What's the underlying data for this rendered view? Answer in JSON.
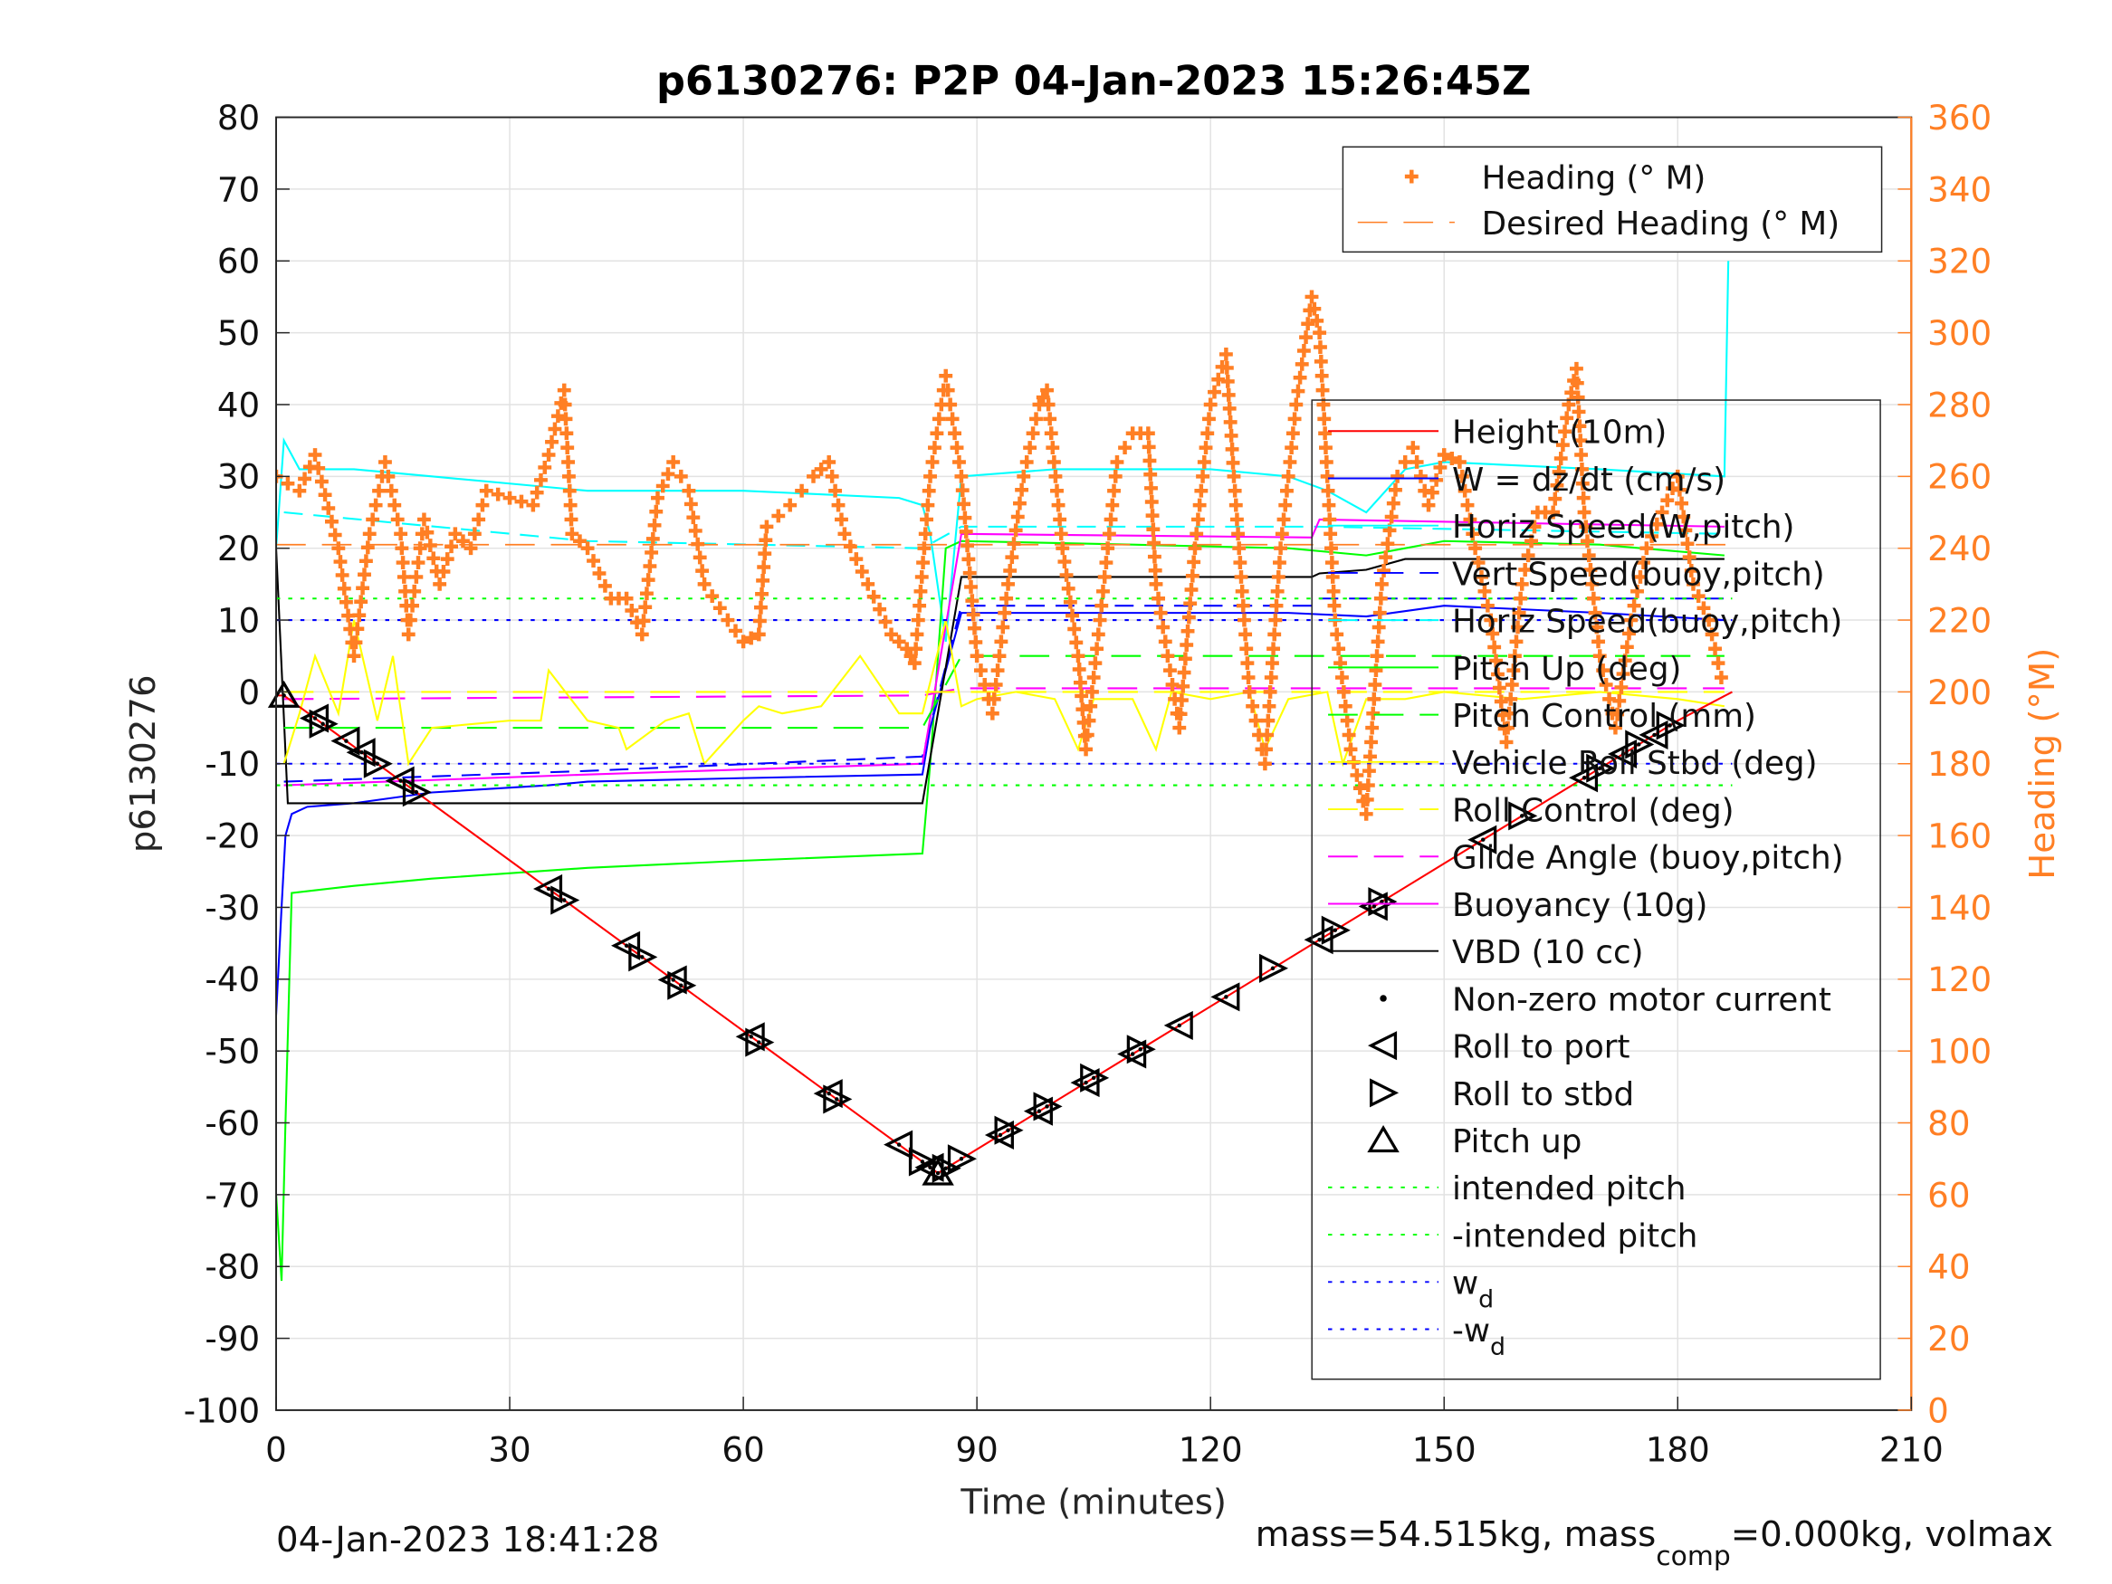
{
  "chart_data": {
    "type": "line",
    "title": "p6130276: P2P 04-Jan-2023 15:26:45Z",
    "xlabel": "Time (minutes)",
    "ylabel": "p6130276",
    "y2label": "Heading (°M)",
    "xlim": [
      0,
      210
    ],
    "ylim": [
      -100,
      80
    ],
    "y2lim": [
      0,
      360
    ],
    "xticks": [
      0,
      30,
      60,
      90,
      120,
      150,
      180,
      210
    ],
    "yticks": [
      80,
      70,
      60,
      50,
      40,
      30,
      20,
      10,
      0,
      -10,
      -20,
      -30,
      -40,
      -50,
      -60,
      -70,
      -80,
      -90,
      -100
    ],
    "y2ticks": [
      360,
      340,
      320,
      300,
      280,
      260,
      240,
      220,
      200,
      180,
      160,
      140,
      120,
      100,
      80,
      60,
      40,
      20,
      0
    ],
    "grid": true,
    "footer_left": "04-Jan-2023 18:41:28",
    "footer_right": {
      "pre": "mass=54.515kg, mass",
      "sub": "comp",
      "post": "=0.000kg, volmax"
    },
    "legend_heading": [
      {
        "label": "Heading (° M)",
        "color": "#ff7f24",
        "style": "plus"
      },
      {
        "label": "Desired Heading (° M)",
        "color": "#ff7f24",
        "style": "dash"
      }
    ],
    "legend": [
      {
        "label": "Height (10m)",
        "color": "#ff0000",
        "style": "solid"
      },
      {
        "label": "W = dz/dt (cm/s)",
        "color": "#0000ff",
        "style": "solid"
      },
      {
        "label": "Horiz Speed(W,pitch)",
        "color": "#00ffff",
        "style": "solid"
      },
      {
        "label": "Vert Speed(buoy,pitch)",
        "color": "#0000ff",
        "style": "dash"
      },
      {
        "label": "Horiz Speed(buoy,pitch)",
        "color": "#00ffff",
        "style": "dash"
      },
      {
        "label": "Pitch Up (deg)",
        "color": "#00ff00",
        "style": "solid"
      },
      {
        "label": "Pitch Control (mm)",
        "color": "#00ff00",
        "style": "dash"
      },
      {
        "label": "Vehicle Roll Stbd (deg)",
        "color": "#ffff00",
        "style": "solid"
      },
      {
        "label": "Roll Control (deg)",
        "color": "#ffff00",
        "style": "dash"
      },
      {
        "label": "Glide Angle (buoy,pitch)",
        "color": "#ff00ff",
        "style": "dash"
      },
      {
        "label": "Buoyancy (10g)",
        "color": "#ff00ff",
        "style": "solid"
      },
      {
        "label": "VBD (10 cc)",
        "color": "#000000",
        "style": "solid"
      },
      {
        "label": "Non-zero motor current",
        "color": "#000000",
        "style": "dot"
      },
      {
        "label": "Roll to port",
        "color": "#000000",
        "style": "port"
      },
      {
        "label": "Roll to stbd",
        "color": "#000000",
        "style": "stbd"
      },
      {
        "label": "Pitch up",
        "color": "#000000",
        "style": "up"
      },
      {
        "label": "intended pitch",
        "color": "#00ff00",
        "style": "dotted"
      },
      {
        "label": "-intended pitch",
        "color": "#00ff00",
        "style": "dotted"
      },
      {
        "label": "w",
        "sub": "d",
        "color": "#0000ff",
        "style": "dotted"
      },
      {
        "label": "-w",
        "sub": "d",
        "color": "#0000ff",
        "style": "dotted"
      }
    ],
    "series": [
      {
        "name": "Horiz Speed(W,pitch)",
        "color": "#00ffff",
        "dash": "",
        "x": [
          0,
          1,
          3,
          10,
          20,
          30,
          40,
          60,
          80,
          83,
          84,
          86,
          88,
          100,
          120,
          130,
          135,
          140,
          145,
          150,
          170,
          186,
          186.5
        ],
        "y": [
          20,
          35,
          31,
          31,
          30,
          29,
          28,
          28,
          27,
          26,
          22,
          7,
          30,
          31,
          31,
          30,
          28,
          25,
          31,
          32,
          31,
          30,
          60
        ]
      },
      {
        "name": "Horiz Speed(buoy,pitch)",
        "color": "#00ffff",
        "dash": "14 8",
        "x": [
          1,
          40,
          83,
          88,
          133,
          134,
          186
        ],
        "y": [
          25,
          21,
          20,
          23,
          23,
          23,
          22
        ]
      },
      {
        "name": "Pitch Up (deg)",
        "color": "#00ff00",
        "dash": "",
        "x": [
          0,
          0.7,
          1.2,
          2,
          10,
          20,
          40,
          60,
          83,
          84,
          85,
          86,
          88,
          110,
          130,
          140,
          145,
          150,
          170,
          186
        ],
        "y": [
          -70,
          -82,
          -60,
          -28,
          -27,
          -26,
          -24.5,
          -23.5,
          -22.5,
          -10,
          5,
          20,
          21,
          20.5,
          20,
          19,
          20,
          21,
          20.5,
          19
        ]
      },
      {
        "name": "W = dz/dt (cm/s)",
        "color": "#0000ff",
        "dash": "",
        "x": [
          0,
          0.7,
          1.2,
          2,
          4,
          10,
          20,
          35,
          40,
          60,
          83,
          84,
          88,
          110,
          130,
          140,
          150,
          170,
          186
        ],
        "y": [
          -45,
          -30,
          -20,
          -17,
          -16,
          -15.5,
          -14,
          -13,
          -12.5,
          -12,
          -11.5,
          -5,
          11,
          11,
          11,
          10.5,
          12,
          11,
          10
        ]
      },
      {
        "name": "Vert Speed(buoy,pitch)",
        "color": "#0000ff",
        "dash": "14 8",
        "x": [
          1,
          40,
          83,
          88,
          133,
          134,
          186
        ],
        "y": [
          -12.5,
          -11,
          -9,
          12,
          12,
          13,
          13
        ]
      },
      {
        "name": "Buoyancy (10g)",
        "color": "#ff00ff",
        "dash": "",
        "x": [
          1,
          40,
          83,
          88,
          133,
          134,
          186
        ],
        "y": [
          -13,
          -11.5,
          -10,
          22,
          21.5,
          24,
          23
        ]
      },
      {
        "name": "Glide Angle (buoy,pitch)",
        "color": "#ff00ff",
        "dash": "22 12",
        "x": [
          1,
          83,
          88,
          186
        ],
        "y": [
          -1,
          -0.5,
          0.5,
          0.5
        ]
      },
      {
        "name": "VBD (10 cc)",
        "color": "#000000",
        "dash": "",
        "x": [
          0,
          1.5,
          83,
          88,
          133,
          134,
          140,
          145,
          186
        ],
        "y": [
          20,
          -15.5,
          -15.5,
          16,
          16,
          16.5,
          17,
          18.5,
          18.5
        ]
      },
      {
        "name": "Pitch Control (mm)",
        "color": "#00ff00",
        "dash": "22 12",
        "x": [
          1,
          83,
          88,
          186
        ],
        "y": [
          -5,
          -5,
          5,
          5
        ]
      },
      {
        "name": "Vehicle Roll Stbd (deg)",
        "color": "#ffff00",
        "dash": "",
        "x": [
          1,
          3,
          5,
          8,
          10,
          13,
          15,
          17,
          20,
          30,
          34,
          35,
          40,
          44,
          45,
          50,
          53,
          55,
          60,
          62,
          65,
          70,
          75,
          80,
          83,
          86,
          88,
          90,
          95,
          100,
          103,
          105,
          110,
          113,
          115,
          120,
          125,
          127,
          130,
          135,
          137,
          140,
          145,
          150,
          160,
          170,
          180,
          186
        ],
        "y": [
          -10,
          -3,
          5,
          -3,
          10,
          -4,
          5,
          -10,
          -5,
          -4,
          -4,
          3,
          -4,
          -5,
          -8,
          -4,
          -3,
          -10,
          -4,
          -2,
          -3,
          -2,
          5,
          -3,
          -3,
          10,
          -2,
          -1,
          0,
          -1,
          -8,
          -1,
          -1,
          -8,
          0,
          -1,
          0,
          -8,
          -1,
          0,
          -10,
          -1,
          -1,
          0,
          -1,
          0,
          -1,
          -2
        ]
      },
      {
        "name": "Roll Control (deg)",
        "color": "#ffff00",
        "dash": "22 12",
        "x": [
          1,
          186
        ],
        "y": [
          0,
          0
        ]
      },
      {
        "name": "intended pitch",
        "color": "#00ff00",
        "dash": "3 6",
        "x": [
          0,
          187
        ],
        "y": [
          13,
          13
        ]
      },
      {
        "name": "-intended pitch",
        "color": "#00ff00",
        "dash": "3 6",
        "x": [
          0,
          187
        ],
        "y": [
          -13,
          -13
        ]
      },
      {
        "name": "w_d",
        "color": "#0000ff",
        "dash": "3 6",
        "x": [
          0,
          187
        ],
        "y": [
          10,
          10
        ]
      },
      {
        "name": "-w_d",
        "color": "#0000ff",
        "dash": "3 6",
        "x": [
          0,
          187
        ],
        "y": [
          -10,
          -10
        ]
      },
      {
        "name": "Height (10m)",
        "color": "#ff0000",
        "dash": "",
        "x": [
          0,
          1,
          85,
          180,
          187
        ],
        "y": [
          -0.5,
          -0.5,
          -67,
          -4,
          0
        ]
      }
    ],
    "desired_heading": {
      "value": 241,
      "x": [
        0,
        187
      ]
    },
    "heading": {
      "x": [
        0,
        3,
        5,
        8,
        10,
        12,
        14,
        16,
        17,
        19,
        21,
        23,
        25,
        27,
        30,
        33,
        35,
        37,
        38,
        40,
        43,
        45,
        47,
        49,
        51,
        53,
        55,
        58,
        60,
        62,
        63,
        66,
        69,
        71,
        73,
        76,
        79,
        81,
        82,
        84,
        86,
        88,
        90,
        92,
        94,
        96,
        98,
        99,
        101,
        103,
        104,
        106,
        108,
        110,
        112,
        113,
        116,
        118,
        120,
        122,
        123,
        125,
        127,
        129,
        131,
        133,
        134,
        136,
        138,
        140,
        142,
        144,
        146,
        148,
        150,
        152,
        154,
        156,
        158,
        160,
        162,
        164,
        166,
        167,
        168,
        170,
        172,
        174,
        176,
        178,
        180,
        182,
        184,
        186
      ],
      "y": [
        260,
        256,
        266,
        240,
        210,
        244,
        264,
        244,
        216,
        248,
        230,
        244,
        240,
        256,
        254,
        252,
        266,
        284,
        244,
        240,
        226,
        226,
        216,
        254,
        264,
        256,
        230,
        220,
        214,
        216,
        246,
        252,
        260,
        264,
        244,
        230,
        216,
        212,
        208,
        260,
        288,
        260,
        210,
        194,
        230,
        260,
        280,
        284,
        240,
        210,
        184,
        224,
        264,
        272,
        272,
        230,
        190,
        240,
        280,
        294,
        260,
        200,
        180,
        240,
        280,
        310,
        300,
        220,
        184,
        166,
        230,
        260,
        268,
        252,
        266,
        264,
        240,
        220,
        186,
        230,
        250,
        250,
        280,
        290,
        250,
        210,
        190,
        220,
        240,
        250,
        260,
        230,
        220,
        200
      ]
    },
    "markers": {
      "t": [
        1,
        5,
        6,
        9,
        11,
        13,
        16,
        18,
        35,
        37,
        45,
        47,
        51,
        52,
        61,
        62,
        71,
        72,
        80,
        83,
        84,
        85,
        86,
        88,
        93,
        94,
        98,
        99,
        104,
        105,
        110,
        111,
        116,
        122,
        128,
        134,
        136,
        141,
        142,
        155,
        160,
        168,
        170,
        173,
        175,
        177,
        179
      ],
      "type": [
        "up",
        "port",
        "stbd",
        "port",
        "port",
        "stbd",
        "port",
        "stbd",
        "port",
        "stbd",
        "port",
        "stbd",
        "port",
        "stbd",
        "port",
        "stbd",
        "port",
        "stbd",
        "port",
        "stbd",
        "port",
        "up",
        "stbd",
        "stbd",
        "port",
        "stbd",
        "port",
        "stbd",
        "port",
        "stbd",
        "port",
        "stbd",
        "port",
        "port",
        "stbd",
        "port",
        "stbd",
        "port",
        "stbd",
        "port",
        "stbd",
        "port",
        "stbd",
        "port",
        "stbd",
        "port",
        "stbd"
      ]
    }
  }
}
